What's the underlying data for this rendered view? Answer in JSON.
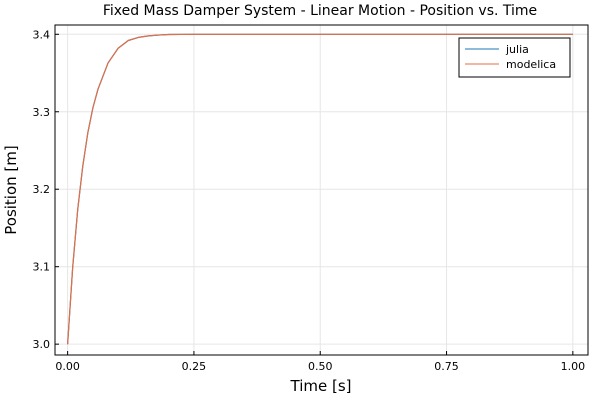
{
  "chart_data": {
    "type": "line",
    "title": "Fixed Mass Damper System - Linear Motion - Position vs. Time",
    "xlabel": "Time [s]",
    "ylabel": "Position [m]",
    "xlim": [
      -0.025,
      1.03
    ],
    "ylim": [
      2.986,
      3.412
    ],
    "xticks": [
      0.0,
      0.25,
      0.5,
      0.75,
      1.0
    ],
    "xtick_labels": [
      "0.00",
      "0.25",
      "0.50",
      "0.75",
      "1.00"
    ],
    "yticks": [
      3.0,
      3.1,
      3.2,
      3.3,
      3.4
    ],
    "ytick_labels": [
      "3.0",
      "3.1",
      "3.2",
      "3.3",
      "3.4"
    ],
    "grid": true,
    "legend_position": "top-right",
    "x": [
      0.0,
      0.01,
      0.02,
      0.03,
      0.04,
      0.05,
      0.06,
      0.08,
      0.1,
      0.12,
      0.14,
      0.16,
      0.18,
      0.2,
      0.25,
      0.3,
      0.35,
      0.4,
      0.5,
      0.6,
      0.7,
      0.8,
      0.9,
      1.0
    ],
    "series": [
      {
        "name": "julia",
        "color": "#1f77b4",
        "values": [
          3.0,
          3.099,
          3.174,
          3.23,
          3.273,
          3.305,
          3.329,
          3.363,
          3.382,
          3.392,
          3.396,
          3.398,
          3.399,
          3.3997,
          3.39995,
          3.4,
          3.4,
          3.4,
          3.4,
          3.4,
          3.4,
          3.4,
          3.4,
          3.4
        ]
      },
      {
        "name": "modelica",
        "color": "#e26f46",
        "values": [
          3.0,
          3.099,
          3.174,
          3.23,
          3.273,
          3.305,
          3.329,
          3.363,
          3.382,
          3.392,
          3.396,
          3.398,
          3.399,
          3.3997,
          3.39995,
          3.4,
          3.4,
          3.4,
          3.4,
          3.4,
          3.4,
          3.4,
          3.4,
          3.4
        ]
      }
    ]
  }
}
